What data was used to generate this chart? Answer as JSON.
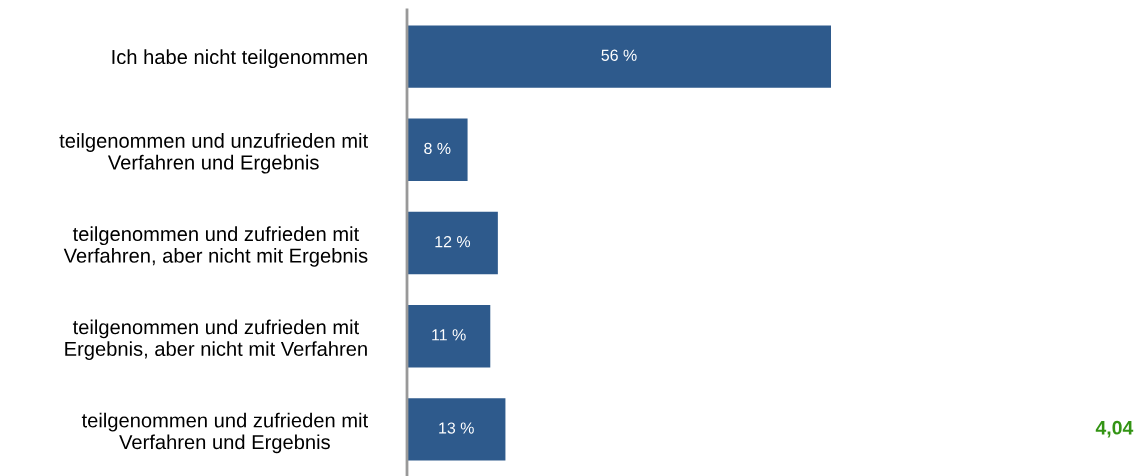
{
  "chart_data": {
    "type": "bar",
    "orientation": "horizontal",
    "categories": [
      "Ich habe nicht teilgenommen",
      "teilgenommen und unzufrieden mit\nVerfahren und Ergebnis",
      "teilgenommen und zufrieden mit\nVerfahren, aber nicht mit Ergebnis",
      "teilgenommen und zufrieden mit\nErgebnis, aber nicht mit Verfahren",
      "teilgenommen und zufrieden mit\nVerfahren und Ergebnis"
    ],
    "values": [
      56,
      8,
      12,
      11,
      13
    ],
    "value_labels": [
      "56 %",
      "8 %",
      "12 %",
      "11 %",
      "13 %"
    ],
    "color": "#2e5a8c",
    "tick_labels": "y",
    "grid": false,
    "legend": false,
    "annotations": [
      "4,04"
    ]
  }
}
